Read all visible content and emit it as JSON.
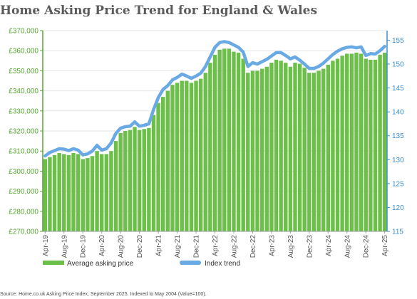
{
  "chart_data": {
    "type": "bar+line",
    "title": "Home Asking Price Trend for England & Wales",
    "source": "Source: Home.co.uk Asking Price Index, September 2025. Indexed to May 2004 (Value=100).",
    "left_axis": {
      "ylim": [
        270000,
        370000
      ],
      "ticks": [
        "£270,000",
        "£280,000",
        "£290,000",
        "£300,000",
        "£310,000",
        "£320,000",
        "£330,000",
        "£340,000",
        "£350,000",
        "£360,000",
        "£370,000"
      ]
    },
    "right_axis": {
      "ylim": [
        115,
        157
      ],
      "ticks": [
        "115",
        "120",
        "125",
        "130",
        "135",
        "140",
        "145",
        "150",
        "155"
      ]
    },
    "x_tick_labels": [
      "Apr-19",
      "Aug-19",
      "Dec-19",
      "Apr-20",
      "Aug-20",
      "Dec-20",
      "Apr-21",
      "Aug-21",
      "Dec-21",
      "Apr-22",
      "Aug-22",
      "Dec-22",
      "Apr-23",
      "Aug-23",
      "Dec-23",
      "Apr-24",
      "Aug-24",
      "Dec-24",
      "Apr-25"
    ],
    "months": [
      "Apr-19",
      "May-19",
      "Jun-19",
      "Jul-19",
      "Aug-19",
      "Sep-19",
      "Oct-19",
      "Nov-19",
      "Dec-19",
      "Jan-20",
      "Feb-20",
      "Mar-20",
      "Apr-20",
      "May-20",
      "Jun-20",
      "Jul-20",
      "Aug-20",
      "Sep-20",
      "Oct-20",
      "Nov-20",
      "Dec-20",
      "Jan-21",
      "Feb-21",
      "Mar-21",
      "Apr-21",
      "May-21",
      "Jun-21",
      "Jul-21",
      "Aug-21",
      "Sep-21",
      "Oct-21",
      "Nov-21",
      "Dec-21",
      "Jan-22",
      "Feb-22",
      "Mar-22",
      "Apr-22",
      "May-22",
      "Jun-22",
      "Jul-22",
      "Aug-22",
      "Sep-22",
      "Oct-22",
      "Nov-22",
      "Dec-22",
      "Jan-23",
      "Feb-23",
      "Mar-23",
      "Apr-23",
      "May-23",
      "Jun-23",
      "Jul-23",
      "Aug-23",
      "Sep-23",
      "Oct-23",
      "Nov-23",
      "Dec-23",
      "Jan-24",
      "Feb-24",
      "Mar-24",
      "Apr-24",
      "May-24",
      "Jun-24",
      "Jul-24",
      "Aug-24",
      "Sep-24",
      "Oct-24",
      "Nov-24",
      "Dec-24",
      "Jan-25",
      "Feb-25",
      "Mar-25",
      "Apr-25"
    ],
    "series": [
      {
        "name": "Average asking price",
        "kind": "bar",
        "axis": "left",
        "color": "#6cc04a",
        "values": [
          306000,
          307000,
          308000,
          309000,
          308500,
          308000,
          309000,
          308500,
          306000,
          306500,
          307500,
          310000,
          308500,
          308500,
          310000,
          315000,
          319000,
          320000,
          320500,
          322000,
          320500,
          321000,
          321500,
          328000,
          334000,
          337000,
          340000,
          343000,
          344000,
          345000,
          345000,
          344000,
          345000,
          346000,
          349000,
          354000,
          358000,
          360500,
          361000,
          361000,
          359500,
          359000,
          356000,
          349000,
          350000,
          350000,
          351000,
          352000,
          354000,
          355500,
          355000,
          354000,
          352000,
          354000,
          353500,
          351500,
          349000,
          349000,
          350000,
          351000,
          353000,
          355000,
          356000,
          357500,
          358500,
          358500,
          359000,
          358500,
          356000,
          355500,
          355500,
          358000,
          359000
        ]
      },
      {
        "name": "Index trend",
        "kind": "line",
        "axis": "right",
        "color": "#6aaae4",
        "values": [
          130.8,
          131.5,
          131.9,
          132.3,
          132.2,
          131.9,
          132.3,
          132.0,
          131.0,
          131.2,
          131.8,
          133.0,
          132.0,
          132.3,
          133.5,
          135.5,
          136.6,
          136.9,
          137.0,
          137.9,
          137.0,
          137.2,
          137.5,
          140.5,
          143.0,
          144.7,
          145.5,
          146.7,
          147.2,
          147.9,
          147.5,
          147.0,
          147.5,
          148.1,
          149.5,
          151.5,
          153.5,
          154.5,
          154.7,
          154.5,
          154.0,
          153.5,
          152.5,
          149.5,
          150.3,
          150.0,
          150.5,
          151.0,
          151.7,
          152.4,
          152.4,
          151.8,
          151.1,
          151.5,
          150.8,
          150.0,
          149.1,
          149.1,
          149.5,
          150.2,
          151.1,
          152.0,
          152.7,
          153.2,
          153.5,
          153.6,
          153.4,
          153.6,
          151.8,
          152.2,
          152.1,
          152.8,
          153.7
        ]
      }
    ],
    "legend": {
      "position": "bottom"
    }
  }
}
